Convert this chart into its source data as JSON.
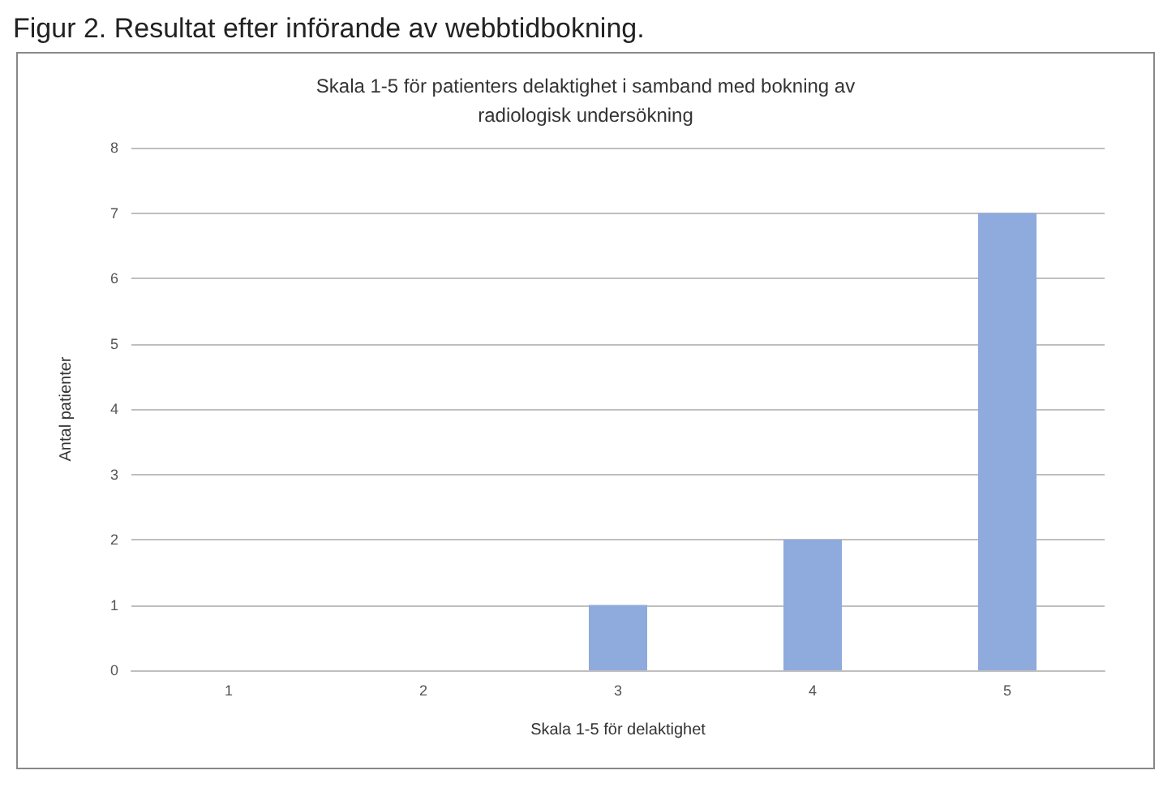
{
  "chart_data": {
    "type": "bar",
    "title": "Figur 2. Resultat efter införande av webbtidbokning.",
    "subtitle": "Skala 1-5 för patienters delaktighet i samband med bokning av\nradiologisk undersökning",
    "xlabel": "Skala 1-5 för delaktighet",
    "ylabel": "Antal patienter",
    "categories": [
      "1",
      "2",
      "3",
      "4",
      "5"
    ],
    "values": [
      0,
      0,
      1,
      2,
      7
    ],
    "color": "#8faadc",
    "ylim": [
      0,
      8
    ],
    "yticks": [
      0,
      1,
      2,
      3,
      4,
      5,
      6,
      7,
      8
    ],
    "grid": "y"
  }
}
